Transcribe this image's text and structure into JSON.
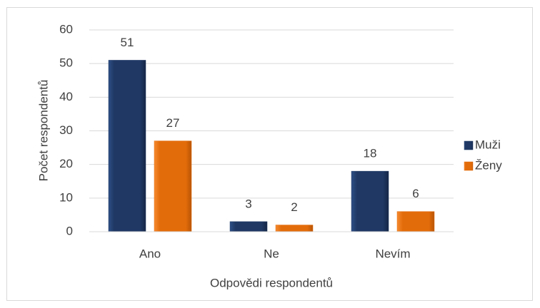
{
  "chart_data": {
    "type": "bar",
    "categories": [
      "Ano",
      "Ne",
      "Nevím"
    ],
    "series": [
      {
        "name": "Muži",
        "color": "#1f3864",
        "values": [
          51,
          3,
          18
        ]
      },
      {
        "name": "Ženy",
        "color": "#e36c0a",
        "values": [
          27,
          2,
          6
        ]
      }
    ],
    "xlabel": "Odpovědi respondentů",
    "ylabel": "Počet respondentů",
    "ylim": [
      0,
      60
    ],
    "yticks": [
      0,
      10,
      20,
      30,
      40,
      50,
      60
    ],
    "grid": true,
    "legend": "right"
  }
}
